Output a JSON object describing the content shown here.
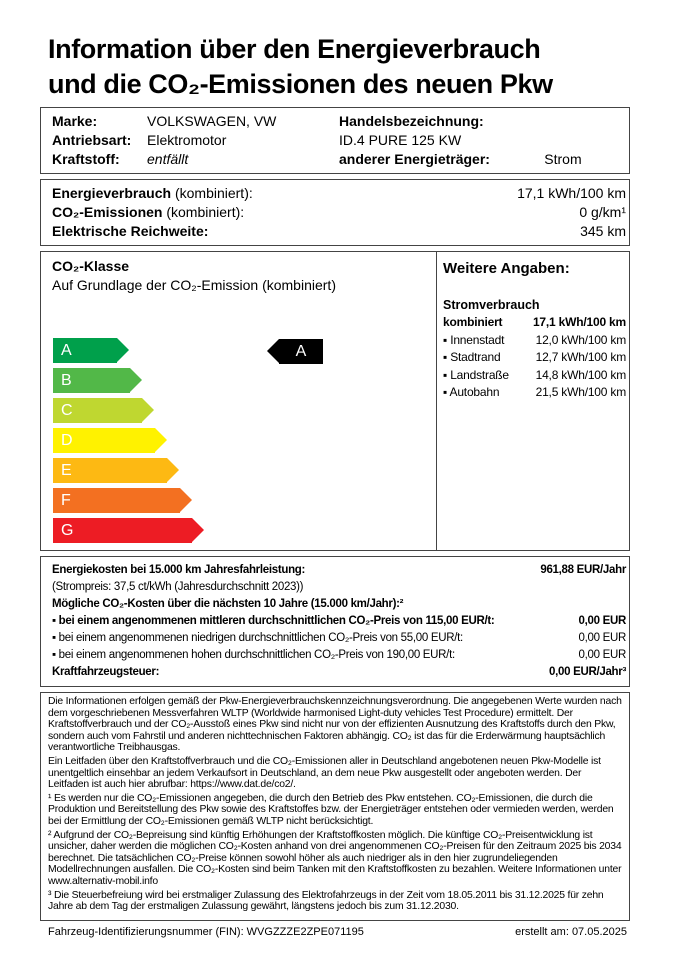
{
  "title": {
    "line1": "Information über den Energieverbrauch",
    "line2": "und die CO₂-Emissionen des neuen Pkw"
  },
  "vehicle": {
    "marke_label": "Marke:",
    "marke": "VOLKSWAGEN, VW",
    "antrieb_label": "Antriebsart:",
    "antrieb": "Elektromotor",
    "kraftstoff_label": "Kraftstoff:",
    "kraftstoff": "entfällt",
    "handel_label": "Handelsbezeichnung:",
    "handel": "ID.4 PURE 125 KW",
    "energie_label": "anderer Energieträger:",
    "energie": "Strom"
  },
  "consumption": {
    "verbrauch_label": "Energieverbrauch",
    "verbrauch_suffix": " (kombiniert):",
    "verbrauch": "17,1 kWh/100 km",
    "co2_label": "CO₂-Emissionen",
    "co2_suffix": " (kombiniert):",
    "co2": "0 g/km¹",
    "reichweite_label": "Elektrische Reichweite:",
    "reichweite": "345 km"
  },
  "co2_class": {
    "title": "CO₂-Klasse",
    "subtitle": "Auf Grundlage der CO₂-Emission (kombiniert)",
    "current": "A",
    "classes": [
      {
        "label": "A",
        "color": "#00a04b"
      },
      {
        "label": "B",
        "color": "#52b848"
      },
      {
        "label": "C",
        "color": "#bfd730"
      },
      {
        "label": "D",
        "color": "#fff200"
      },
      {
        "label": "E",
        "color": "#fdb913"
      },
      {
        "label": "F",
        "color": "#f37021"
      },
      {
        "label": "G",
        "color": "#ed1c24"
      }
    ]
  },
  "further": {
    "title": "Weitere Angaben:",
    "subtitle": "Stromverbrauch",
    "rows": [
      {
        "label": "kombiniert",
        "value": "17,1 kWh/100 km"
      },
      {
        "label": "▪ Innenstadt",
        "value": "12,0 kWh/100 km"
      },
      {
        "label": "▪ Stadtrand",
        "value": "12,7 kWh/100 km"
      },
      {
        "label": "▪ Landstraße",
        "value": "14,8 kWh/100 km"
      },
      {
        "label": "▪ Autobahn",
        "value": "21,5 kWh/100 km"
      }
    ]
  },
  "costs": {
    "energie_label": "Energiekosten bei 15.000 km Jahresfahrleistung:",
    "energie": "961,88 EUR/Jahr",
    "strompreis": "(Strompreis: 37,5 ct/kWh (Jahresdurchschnitt 2023))",
    "co2_title": "Mögliche CO₂-Kosten über die nächsten 10 Jahre (15.000 km/Jahr):²",
    "rows": [
      {
        "label": "▪ bei einem angenommenen mittleren durchschnittlichen CO₂-Preis von 115,00 EUR/t:",
        "value": "0,00 EUR"
      },
      {
        "label": "▪ bei einem angenommenen niedrigen durchschnittlichen CO₂-Preis von 55,00 EUR/t:",
        "value": "0,00 EUR"
      },
      {
        "label": "▪ bei einem angenommenen hohen durchschnittlichen CO₂-Preis von 190,00 EUR/t:",
        "value": "0,00 EUR"
      }
    ],
    "steuer_label": "Kraftfahrzeugsteuer:",
    "steuer": "0,00 EUR/Jahr³"
  },
  "notes": [
    "Die Informationen erfolgen gemäß der Pkw-Energieverbrauchskennzeichnungsverordnung. Die angegebenen Werte wurden nach dem vorgeschriebenen Messverfahren WLTP (Worldwide harmonised Light-duty vehicles Test Procedure) ermittelt. Der Kraftstoffverbrauch und der CO₂-Ausstoß eines Pkw sind nicht nur von der effizienten Ausnutzung des Kraftstoffs durch den Pkw, sondern auch vom Fahrstil und anderen nichttechnischen Faktoren abhängig. CO₂ ist das für die Erderwärmung hauptsächlich verantwortliche Treibhausgas.",
    "Ein Leitfaden über den Kraftstoffverbrauch und die CO₂-Emissionen aller in Deutschland angebotenen neuen Pkw-Modelle ist unentgeltlich einsehbar an jedem Verkaufsort in Deutschland, an dem neue Pkw ausgestellt oder angeboten werden. Der Leitfaden ist auch hier abrufbar: https://www.dat.de/co2/.",
    "¹ Es werden nur die CO₂-Emissionen angegeben, die durch den Betrieb des Pkw entstehen. CO₂-Emissionen, die durch die Produktion und Bereitstellung des Pkw sowie des Kraftstoffes bzw. der Energieträger entstehen oder vermieden werden, werden bei der Ermittlung der CO₂-Emissionen gemäß WLTP nicht berücksichtigt.",
    "² Aufgrund der CO₂-Bepreisung sind künftig Erhöhungen der Kraftstoffkosten möglich. Die künftige CO₂-Preisentwicklung ist unsicher, daher werden die möglichen CO₂-Kosten anhand von drei angenommenen CO₂-Preisen für den Zeitraum 2025 bis 2034 berechnet. Die tatsächlichen CO₂-Preise können sowohl höher als auch niedriger als in den hier zugrundeliegenden Modellrechnungen ausfallen. Die CO₂-Kosten sind beim Tanken mit den Kraftstoffkosten zu bezahlen. Weitere Informationen unter www.alternativ-mobil.info",
    "³ Die Steuerbefreiung wird bei erstmaliger Zulassung des Elektrofahrzeugs in der Zeit vom 18.05.2011 bis 31.12.2025 für zehn Jahre ab dem Tag der erstmaligen Zulassung gewährt, längstens jedoch bis zum 31.12.2030."
  ],
  "footer": {
    "fin": "Fahrzeug-Identifizierungsnummer (FIN): WVGZZZE2ZPE071195",
    "date": "erstellt am: 07.05.2025"
  }
}
